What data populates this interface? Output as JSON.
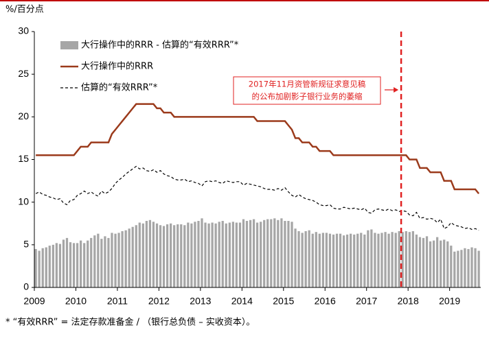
{
  "chart_data": {
    "type": "bar",
    "y_unit_label": "%/百分点",
    "footnote": "* “有效RRR” = 法定存款准备金 / （银行总负债 – 实收资本）。",
    "x": [
      2009,
      2009.083,
      2009.167,
      2009.25,
      2009.333,
      2009.417,
      2009.5,
      2009.583,
      2009.667,
      2009.75,
      2009.833,
      2009.917,
      2010,
      2010.083,
      2010.167,
      2010.25,
      2010.333,
      2010.417,
      2010.5,
      2010.583,
      2010.667,
      2010.75,
      2010.833,
      2010.917,
      2011,
      2011.083,
      2011.167,
      2011.25,
      2011.333,
      2011.417,
      2011.5,
      2011.583,
      2011.667,
      2011.75,
      2011.833,
      2011.917,
      2012,
      2012.083,
      2012.167,
      2012.25,
      2012.333,
      2012.417,
      2012.5,
      2012.583,
      2012.667,
      2012.75,
      2012.833,
      2012.917,
      2013,
      2013.083,
      2013.167,
      2013.25,
      2013.333,
      2013.417,
      2013.5,
      2013.583,
      2013.667,
      2013.75,
      2013.833,
      2013.917,
      2014,
      2014.083,
      2014.167,
      2014.25,
      2014.333,
      2014.417,
      2014.5,
      2014.583,
      2014.667,
      2014.75,
      2014.833,
      2014.917,
      2015,
      2015.083,
      2015.167,
      2015.25,
      2015.333,
      2015.417,
      2015.5,
      2015.583,
      2015.667,
      2015.75,
      2015.833,
      2015.917,
      2016,
      2016.083,
      2016.167,
      2016.25,
      2016.333,
      2016.417,
      2016.5,
      2016.583,
      2016.667,
      2016.75,
      2016.833,
      2016.917,
      2017,
      2017.083,
      2017.167,
      2017.25,
      2017.333,
      2017.417,
      2017.5,
      2017.583,
      2017.667,
      2017.75,
      2017.833,
      2017.917,
      2018,
      2018.083,
      2018.167,
      2018.25,
      2018.333,
      2018.417,
      2018.5,
      2018.583,
      2018.667,
      2018.75,
      2018.833,
      2018.917,
      2019,
      2019.083,
      2019.167,
      2019.25,
      2019.333,
      2019.417,
      2019.5,
      2019.583,
      2019.667
    ],
    "series": [
      {
        "name": "大行操作中的RRR - 估算的“有效RRR”*",
        "kind": "bar",
        "color": "#a6a6a6",
        "values": [
          4.5,
          4.3,
          4.6,
          4.7,
          4.9,
          5.0,
          5.2,
          5.1,
          5.6,
          5.8,
          5.3,
          5.2,
          5.2,
          5.5,
          5.2,
          5.5,
          5.8,
          6.1,
          6.3,
          5.7,
          6.0,
          5.8,
          6.4,
          6.3,
          6.4,
          6.6,
          6.7,
          6.9,
          7.1,
          7.3,
          7.6,
          7.5,
          7.8,
          7.9,
          7.7,
          7.5,
          7.3,
          7.2,
          7.4,
          7.5,
          7.3,
          7.4,
          7.4,
          7.3,
          7.6,
          7.5,
          7.7,
          7.8,
          8.1,
          7.6,
          7.5,
          7.6,
          7.5,
          7.7,
          7.8,
          7.5,
          7.6,
          7.7,
          7.6,
          7.6,
          8.0,
          7.8,
          7.9,
          8.0,
          7.6,
          7.7,
          7.9,
          8.0,
          8.0,
          8.1,
          7.9,
          8.1,
          7.8,
          7.8,
          7.7,
          6.9,
          6.6,
          6.4,
          6.6,
          6.7,
          6.3,
          6.5,
          6.3,
          6.4,
          6.4,
          6.3,
          6.2,
          6.3,
          6.3,
          6.1,
          6.2,
          6.3,
          6.2,
          6.3,
          6.4,
          6.2,
          6.7,
          6.8,
          6.4,
          6.3,
          6.4,
          6.5,
          6.3,
          6.5,
          6.4,
          6.6,
          6.5,
          6.6,
          6.5,
          6.6,
          6.2,
          5.9,
          5.8,
          6.0,
          5.4,
          5.5,
          5.9,
          5.5,
          5.6,
          5.4,
          4.9,
          4.2,
          4.3,
          4.4,
          4.6,
          4.5,
          4.7,
          4.6,
          4.3
        ]
      },
      {
        "name": "大行操作中的RRR",
        "kind": "line",
        "color": "#9b3a1b",
        "values": [
          15.5,
          15.5,
          15.5,
          15.5,
          15.5,
          15.5,
          15.5,
          15.5,
          15.5,
          15.5,
          15.5,
          15.5,
          16,
          16.5,
          16.5,
          16.5,
          17,
          17,
          17,
          17,
          17,
          17,
          18,
          18.5,
          19,
          19.5,
          20,
          20.5,
          21,
          21.5,
          21.5,
          21.5,
          21.5,
          21.5,
          21.5,
          21,
          21,
          20.5,
          20.5,
          20.5,
          20,
          20,
          20,
          20,
          20,
          20,
          20,
          20,
          20,
          20,
          20,
          20,
          20,
          20,
          20,
          20,
          20,
          20,
          20,
          20,
          20,
          20,
          20,
          20,
          19.5,
          19.5,
          19.5,
          19.5,
          19.5,
          19.5,
          19.5,
          19.5,
          19.5,
          19,
          18.5,
          17.5,
          17.5,
          17,
          17,
          17,
          16.5,
          16.5,
          16,
          16,
          16,
          16,
          15.5,
          15.5,
          15.5,
          15.5,
          15.5,
          15.5,
          15.5,
          15.5,
          15.5,
          15.5,
          15.5,
          15.5,
          15.5,
          15.5,
          15.5,
          15.5,
          15.5,
          15.5,
          15.5,
          15.5,
          15.5,
          15.5,
          15,
          15,
          15,
          14,
          14,
          14,
          13.5,
          13.5,
          13.5,
          13.5,
          12.5,
          12.5,
          12.5,
          11.5,
          11.5,
          11.5,
          11.5,
          11.5,
          11.5,
          11.5,
          11
        ]
      },
      {
        "name": "估算的“有效RRR”*",
        "kind": "line",
        "dash": true,
        "color": "#000000",
        "values": [
          11.0,
          11.2,
          10.9,
          10.8,
          10.6,
          10.5,
          10.3,
          10.4,
          9.9,
          9.7,
          10.2,
          10.3,
          10.8,
          11.0,
          11.3,
          11.0,
          11.2,
          10.9,
          10.7,
          11.3,
          11.0,
          11.2,
          11.6,
          12.2,
          12.6,
          12.9,
          13.3,
          13.6,
          13.9,
          14.2,
          13.9,
          14.0,
          13.7,
          13.6,
          13.8,
          13.5,
          13.7,
          13.3,
          13.1,
          13.0,
          12.7,
          12.6,
          12.6,
          12.7,
          12.4,
          12.5,
          12.3,
          12.2,
          11.9,
          12.4,
          12.5,
          12.4,
          12.5,
          12.3,
          12.2,
          12.5,
          12.4,
          12.3,
          12.4,
          12.4,
          12.0,
          12.2,
          12.1,
          12.0,
          11.9,
          11.8,
          11.6,
          11.5,
          11.5,
          11.4,
          11.6,
          11.4,
          11.7,
          11.2,
          10.8,
          10.6,
          10.9,
          10.6,
          10.4,
          10.3,
          10.2,
          10.0,
          9.7,
          9.6,
          9.6,
          9.7,
          9.3,
          9.2,
          9.2,
          9.4,
          9.3,
          9.2,
          9.3,
          9.2,
          9.1,
          9.3,
          8.8,
          8.7,
          9.1,
          9.2,
          9.1,
          9.0,
          9.2,
          9.0,
          9.1,
          8.9,
          9.0,
          8.9,
          8.5,
          8.4,
          8.8,
          8.1,
          8.2,
          8.0,
          8.1,
          8.0,
          7.6,
          8.0,
          6.9,
          7.1,
          7.6,
          7.3,
          7.2,
          7.1,
          6.9,
          7.0,
          6.8,
          6.9,
          6.7
        ]
      }
    ],
    "xlim": [
      2009,
      2019.75
    ],
    "xticks": [
      2009,
      2010,
      2011,
      2012,
      2013,
      2014,
      2015,
      2016,
      2017,
      2018,
      2019
    ],
    "ylim": [
      0,
      30
    ],
    "yticks": [
      0,
      5,
      10,
      15,
      20,
      25,
      30
    ],
    "legend": "top-left",
    "annotation": {
      "x": 2017.833,
      "color": "#e02020",
      "lines": [
        "2017年11月资管新规征求意见稿",
        "的公布加剧影子银行业务的萎缩"
      ]
    }
  }
}
